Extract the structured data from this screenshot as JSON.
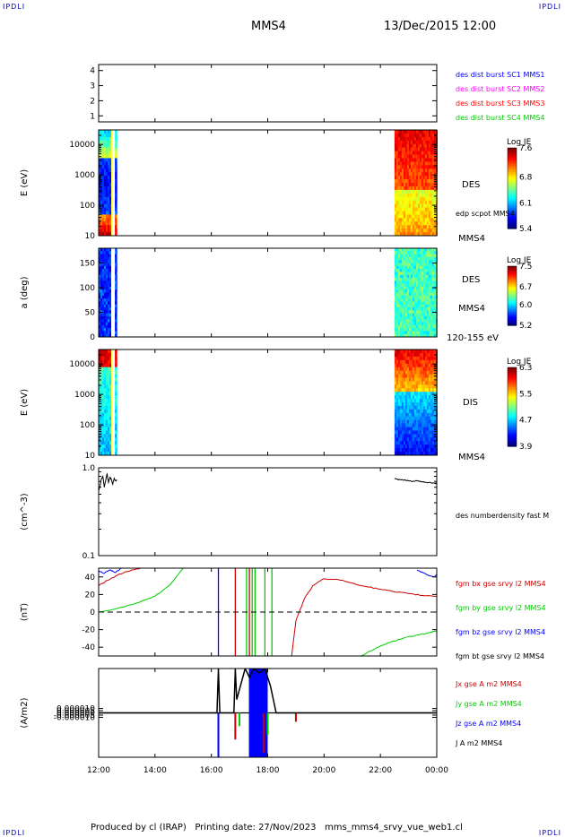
{
  "header": {
    "corner_left_top": "IPDLI",
    "corner_right_top": "IPDLI",
    "corner_left_bottom": "IPDLI",
    "corner_right_bottom": "IPDLI",
    "spacecraft": "MMS4",
    "datetime": "13/Dec/2015 12:00"
  },
  "footer": {
    "text": "Produced by cl (IRAP)   Printing date: 27/Nov/2023   mms_mms4_srvy_vue_web1.cl"
  },
  "colors": {
    "blue": "#0000ff",
    "magenta": "#ff00ff",
    "red": "#ff0000",
    "green": "#00cc00",
    "black": "#000000"
  },
  "chart_data": [
    {
      "id": "burst",
      "type": "table",
      "yticks": [
        "4",
        "3",
        "2",
        "1"
      ],
      "ylim": [
        0.6,
        4.4
      ],
      "legend": [
        {
          "label": "des dist burst SC1 MMS1",
          "color": "#0000ff"
        },
        {
          "label": "des dist burst SC2 MMS2",
          "color": "#ff00ff"
        },
        {
          "label": "des dist burst SC3 MMS3",
          "color": "#ff0000"
        },
        {
          "label": "des dist burst SC4 MMS4",
          "color": "#00cc00"
        }
      ]
    },
    {
      "id": "des_energy",
      "type": "heatmap",
      "ylabel": "E (eV)",
      "yscale": "log",
      "ylim": [
        10,
        30000
      ],
      "yticks": [
        "10",
        "100",
        "1000",
        "10000"
      ],
      "right_labels": [
        "DES",
        "edp scpot MMS4",
        "MMS4"
      ],
      "colorbar": {
        "title": "Log JE",
        "ticks": [
          "7.6",
          "6.8",
          "6.1",
          "5.4"
        ],
        "range": [
          5.4,
          7.6
        ]
      },
      "data_intervals": [
        [
          "12:00",
          "12:40"
        ],
        [
          "22:30",
          "00:00"
        ]
      ]
    },
    {
      "id": "des_pitch",
      "type": "heatmap",
      "ylabel": "a (deg)",
      "ylim": [
        0,
        180
      ],
      "yticks": [
        "0",
        "50",
        "100",
        "150"
      ],
      "right_labels": [
        "DES",
        "MMS4",
        "120-155 eV"
      ],
      "colorbar": {
        "title": "Log JE",
        "ticks": [
          "7.5",
          "6.7",
          "6.0",
          "5.2"
        ],
        "range": [
          5.2,
          7.5
        ]
      },
      "data_intervals": [
        [
          "12:00",
          "12:40"
        ],
        [
          "22:30",
          "00:00"
        ]
      ]
    },
    {
      "id": "dis_energy",
      "type": "heatmap",
      "ylabel": "E (eV)",
      "yscale": "log",
      "ylim": [
        10,
        30000
      ],
      "yticks": [
        "10",
        "100",
        "1000",
        "10000"
      ],
      "right_labels": [
        "DIS",
        "MMS4"
      ],
      "colorbar": {
        "title": "Log JE",
        "ticks": [
          "6.3",
          "5.5",
          "4.7",
          "3.9"
        ],
        "range": [
          3.9,
          6.3
        ]
      },
      "data_intervals": [
        [
          "12:00",
          "12:40"
        ],
        [
          "22:30",
          "00:00"
        ]
      ]
    },
    {
      "id": "density",
      "type": "line",
      "ylabel": "(cm^-3)",
      "yscale": "log",
      "ylim": [
        0.1,
        1.0
      ],
      "yticks": [
        "0.1",
        "1.0"
      ],
      "legend": [
        {
          "label": "des numberdensity fast M",
          "color": "#000000"
        }
      ],
      "series": [
        {
          "name": "des numberdensity fast M",
          "color": "#000000",
          "x": [
            12.0,
            12.05,
            12.1,
            12.15,
            12.2,
            12.25,
            12.3,
            12.35,
            12.4,
            12.45,
            12.5,
            12.55,
            12.6,
            12.65,
            22.5,
            22.7,
            22.9,
            23.1,
            23.3,
            23.5,
            23.7,
            23.9,
            24.0
          ],
          "y": [
            0.55,
            0.62,
            0.75,
            0.8,
            0.6,
            0.72,
            0.85,
            0.68,
            0.78,
            0.74,
            0.65,
            0.76,
            0.71,
            0.73,
            0.75,
            0.73,
            0.72,
            0.7,
            0.71,
            0.69,
            0.68,
            0.67,
            0.66
          ]
        }
      ]
    },
    {
      "id": "bfield",
      "type": "line",
      "ylabel": "(nT)",
      "ylim": [
        -50,
        50
      ],
      "yticks": [
        "40",
        "20",
        "0",
        "-20",
        "-40"
      ],
      "legend": [
        {
          "label": "fgm bx gse srvy l2 MMS4",
          "color": "#cc0000"
        },
        {
          "label": "fgm by gse srvy l2 MMS4",
          "color": "#00cc00"
        },
        {
          "label": "fgm bz gse srvy l2 MMS4",
          "color": "#0000ff"
        },
        {
          "label": "fgm bt gse srvy l2 MMS4",
          "color": "#000000"
        }
      ],
      "series": [
        {
          "name": "fgm bx gse srvy l2 MMS4",
          "color": "#cc0000",
          "x": [
            12.0,
            12.3,
            12.6,
            13.0,
            13.5,
            14.0,
            14.5,
            15.0,
            16.0,
            16.5,
            16.7,
            16.8
          ],
          "y": [
            30,
            36,
            41,
            46,
            50,
            53,
            55,
            56,
            57,
            57,
            56,
            55
          ]
        },
        {
          "name": "fgm bx gse srvy l2 MMS4 (post)",
          "color": "#cc0000",
          "x": [
            18.85,
            19.0,
            19.3,
            19.6,
            20.0,
            20.5,
            21.0,
            21.5,
            22.0,
            22.5,
            23.0,
            23.5,
            24.0
          ],
          "y": [
            -50,
            -10,
            15,
            30,
            38,
            37,
            33,
            29,
            26,
            23,
            21,
            19,
            18
          ]
        },
        {
          "name": "fgm by gse srvy l2 MMS4",
          "color": "#00cc00",
          "x": [
            12.0,
            12.5,
            13.0,
            13.5,
            14.0,
            14.5,
            15.0
          ],
          "y": [
            0,
            3,
            7,
            12,
            18,
            30,
            50
          ]
        },
        {
          "name": "fgm by gse srvy l2 MMS4 (post)",
          "color": "#00cc00",
          "x": [
            21.3,
            21.8,
            22.3,
            22.8,
            23.3,
            23.8,
            24.0
          ],
          "y": [
            -50,
            -42,
            -35,
            -30,
            -26,
            -23,
            -21
          ]
        },
        {
          "name": "fgm bz gse srvy l2 MMS4",
          "color": "#0000ff",
          "x": [
            12.0,
            12.2,
            12.4,
            12.6,
            12.8,
            23.3,
            23.5,
            23.7,
            23.9,
            24.0
          ],
          "y": [
            47,
            44,
            48,
            45,
            50,
            48,
            45,
            42,
            40,
            43
          ]
        }
      ],
      "spikes": [
        {
          "x": 16.25,
          "color": "#0000ff"
        },
        {
          "x": 16.85,
          "color": "#cc0000"
        },
        {
          "x": 17.25,
          "color": "#00cc00"
        },
        {
          "x": 17.35,
          "color": "#cc0000"
        },
        {
          "x": 17.45,
          "color": "#00cc00"
        },
        {
          "x": 17.55,
          "color": "#00cc00"
        },
        {
          "x": 17.9,
          "color": "#00cc00"
        },
        {
          "x": 18.15,
          "color": "#00cc00"
        }
      ]
    },
    {
      "id": "current",
      "type": "line",
      "ylabel": "(A/m2)",
      "ylim": [
        -0.0001,
        0.0001
      ],
      "yticks": [
        "0.000010",
        "0.000005",
        "0.000000",
        "-0.000005",
        "-0.000010"
      ],
      "xticks": [
        "12:00",
        "14:00",
        "16:00",
        "18:00",
        "20:00",
        "22:00",
        "00:00"
      ],
      "legend": [
        {
          "label": "Jx gse A m2 MMS4",
          "color": "#cc0000"
        },
        {
          "label": "Jy gse A m2 MMS4",
          "color": "#00cc00"
        },
        {
          "label": "Jz gse A m2 MMS4",
          "color": "#0000ff"
        },
        {
          "label": "J A m2 MMS4",
          "color": "#000000"
        }
      ],
      "series": [
        {
          "name": "J A m2 MMS4",
          "color": "#000000",
          "x": [
            12.0,
            16.2,
            16.25,
            16.3,
            16.8,
            16.85,
            16.9,
            17.2,
            17.35,
            17.5,
            17.7,
            17.9,
            18.1,
            18.3,
            19.0,
            24.0
          ],
          "y": [
            0,
            0,
            0.0001,
            0,
            0,
            0.0001,
            3e-05,
            0.0001,
            8e-05,
            0.0001,
            9e-05,
            0.0001,
            6e-05,
            0,
            0,
            0
          ]
        }
      ],
      "burst_interval": [
        "17:20",
        "18:00"
      ]
    }
  ]
}
